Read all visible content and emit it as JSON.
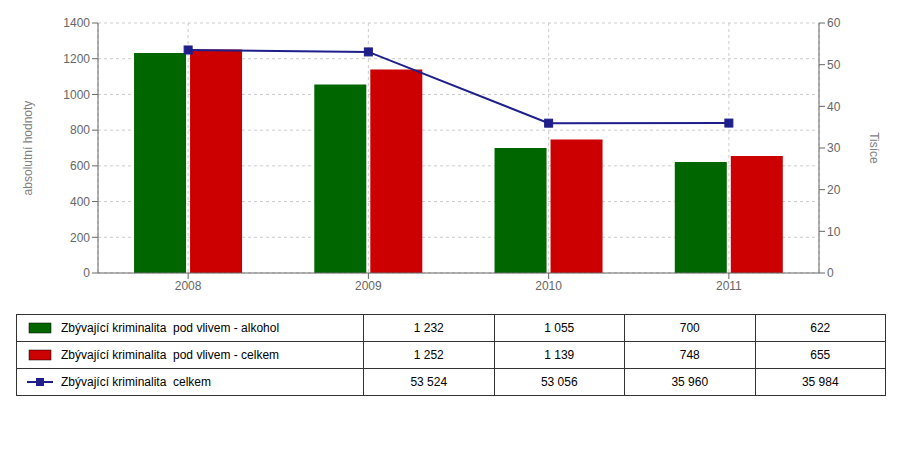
{
  "chart_data": {
    "type": "bar",
    "categories": [
      "2008",
      "2009",
      "2010",
      "2011"
    ],
    "series": [
      {
        "name": "Zbývající kriminalita  pod vlivem - alkohol",
        "type": "bar",
        "color": "#006600",
        "values": [
          1232,
          1055,
          700,
          622
        ],
        "value_labels": [
          "1 232",
          "1 055",
          "700",
          "622"
        ]
      },
      {
        "name": "Zbývající kriminalita  pod vlivem - celkem",
        "type": "bar",
        "color": "#cc0000",
        "values": [
          1252,
          1139,
          748,
          655
        ],
        "value_labels": [
          "1 252",
          "1 139",
          "748",
          "655"
        ]
      },
      {
        "name": "Zbývající kriminalita  celkem",
        "type": "line",
        "color": "#1F1F8B",
        "marker": "square",
        "axis": "y2",
        "values": [
          53.524,
          53.056,
          35.96,
          35.984
        ],
        "value_labels": [
          "53 524",
          "53 056",
          "35 960",
          "35 984"
        ]
      }
    ],
    "ylabel": "absolutní hodnoty",
    "y2label": "Tisíce",
    "ylim": [
      0,
      1400
    ],
    "yticks": [
      0,
      200,
      400,
      600,
      800,
      1000,
      1200,
      1400
    ],
    "y2lim": [
      0,
      60
    ],
    "y2ticks": [
      0,
      10,
      20,
      30,
      40,
      50,
      60
    ],
    "grid": true
  }
}
